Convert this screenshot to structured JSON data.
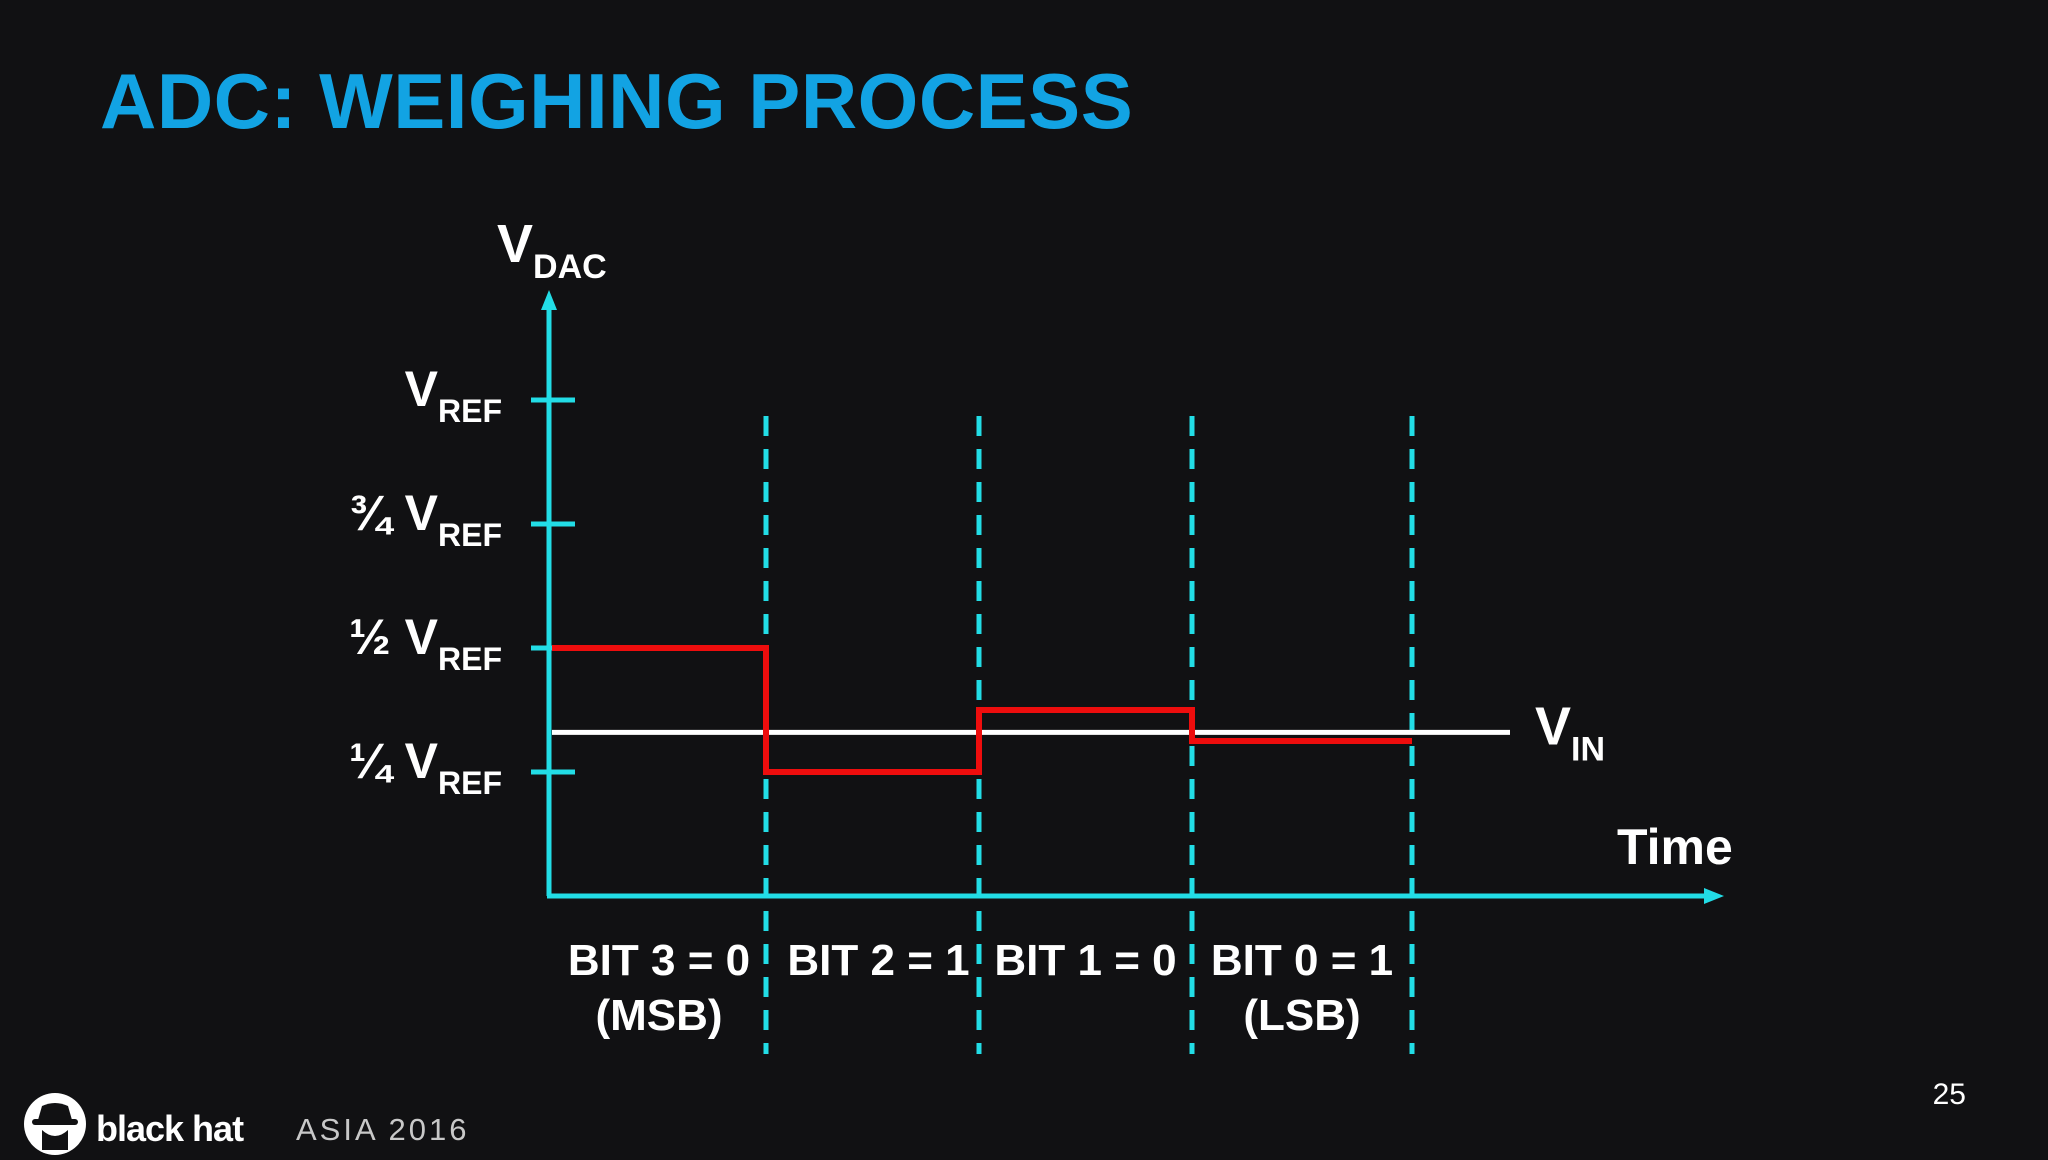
{
  "slide": {
    "title": "ADC: WEIGHING PROCESS",
    "page_number": "25"
  },
  "diagram": {
    "y_axis": {
      "symbol": "V",
      "subscript": "DAC"
    },
    "x_axis": {
      "label": "Time"
    },
    "levels": [
      {
        "prefix": "",
        "symbol": "V",
        "subscript": "REF",
        "fraction": 1.0
      },
      {
        "prefix": "¾ ",
        "symbol": "V",
        "subscript": "REF",
        "fraction": 0.75
      },
      {
        "prefix": "½ ",
        "symbol": "V",
        "subscript": "REF",
        "fraction": 0.5
      },
      {
        "prefix": "¼ ",
        "symbol": "V",
        "subscript": "REF",
        "fraction": 0.25
      }
    ],
    "vin": {
      "symbol": "V",
      "subscript": "IN",
      "fraction": 0.33
    },
    "steps": [
      {
        "label": "BIT 3 = 0",
        "sublabel": "(MSB)",
        "dac_fraction": 0.5
      },
      {
        "label": "BIT 2 = 1",
        "sublabel": "",
        "dac_fraction": 0.25
      },
      {
        "label": "BIT 1 = 0",
        "sublabel": "",
        "dac_fraction": 0.375
      },
      {
        "label": "BIT 0 = 1",
        "sublabel": "(LSB)",
        "dac_fraction": 0.3125
      }
    ],
    "colors": {
      "axis": "#22dde6",
      "dac": "#ee0d0d",
      "vin": "#ffffff",
      "title": "#12a3e3"
    }
  },
  "footer": {
    "brand": "black hat",
    "event": "ASIA 2016",
    "logo_icon": "spy-hat-icon"
  }
}
